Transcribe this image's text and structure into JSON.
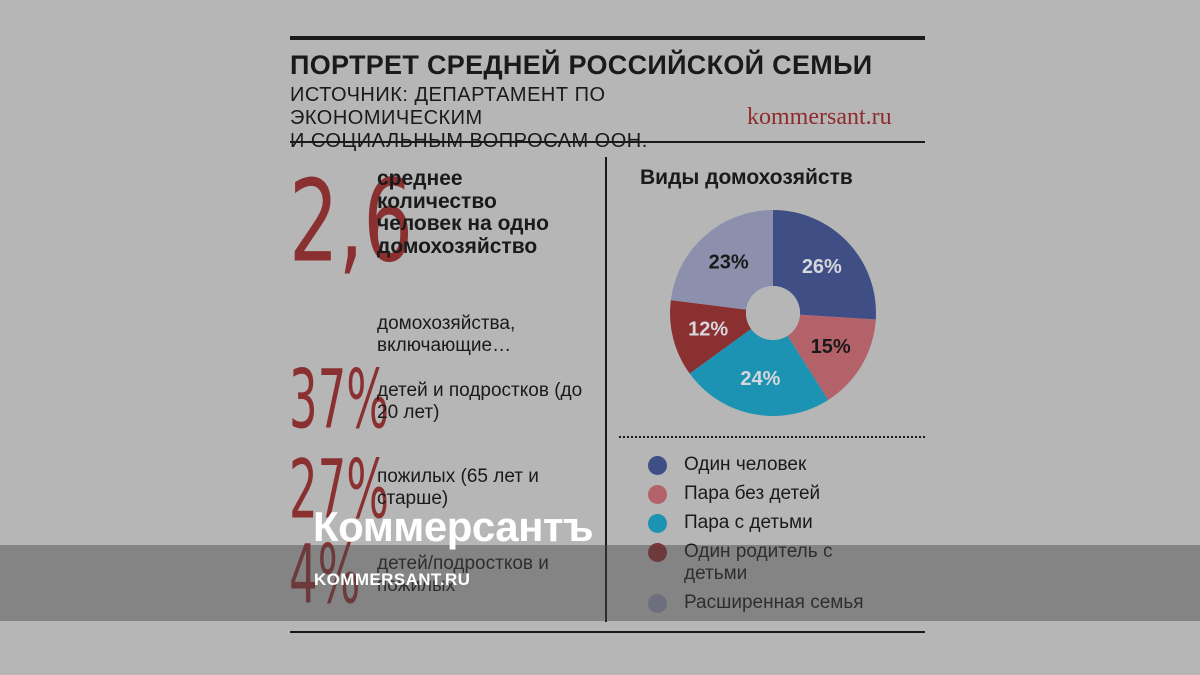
{
  "header": {
    "title": "ПОРТРЕТ СРЕДНЕЙ РОССИЙСКОЙ СЕМЬИ",
    "source_line1": "ИСТОЧНИК: ДЕПАРТАМЕНТ ПО ЭКОНОМИЧЕСКИМ",
    "source_line2": "И СОЦИАЛЬНЫМ ВОПРОСАМ ООН.",
    "brand": "kommersant.ru"
  },
  "stats": {
    "avg_value": "2,6",
    "avg_label": "среднее количество человек на одно домохозяйство",
    "intro": "домохозяйства, включающие…",
    "items": [
      {
        "value": "37%",
        "label": "детей и подростков (до 20 лет)"
      },
      {
        "value": "27%",
        "label": "пожилых (65 лет и старше)"
      },
      {
        "value": "4%",
        "label": "детей/подростков и пожилых"
      }
    ]
  },
  "watermark": {
    "logo": "Коммерсантъ",
    "url": "KOMMERSANT.RU"
  },
  "chart_data": {
    "type": "pie",
    "title": "Виды домохозяйств",
    "donut": true,
    "categories": [
      "Один человек",
      "Пара без детей",
      "Пара с детьми",
      "Один родитель с детьми",
      "Расширенная семья"
    ],
    "values": [
      26,
      15,
      24,
      12,
      23
    ],
    "labels": [
      "26%",
      "15%",
      "24%",
      "12%",
      "23%"
    ],
    "colors": [
      "#3f4f85",
      "#b4626a",
      "#1c93b2",
      "#8a3030",
      "#8d90ad"
    ],
    "label_colors": [
      "#d6d6dc",
      "#1a1a1a",
      "#d6d6dc",
      "#d6d6dc",
      "#1a1a1a"
    ],
    "legend_position": "bottom"
  }
}
